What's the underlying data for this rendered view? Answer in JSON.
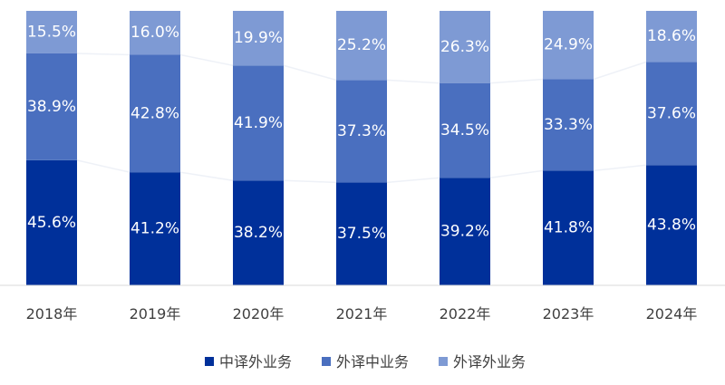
{
  "chart_data": {
    "type": "bar",
    "stacked": true,
    "percent": true,
    "categories": [
      "2018年",
      "2019年",
      "2020年",
      "2021年",
      "2022年",
      "2023年",
      "2024年"
    ],
    "series": [
      {
        "name": "中译外业务",
        "color": "#00309a",
        "values": [
          45.6,
          41.2,
          38.2,
          37.5,
          39.2,
          41.8,
          43.8
        ],
        "labels": [
          "45.6%",
          "41.2%",
          "38.2%",
          "37.5%",
          "39.2%",
          "41.8%",
          "43.8%"
        ]
      },
      {
        "name": "外译中业务",
        "color": "#4a6fbf",
        "values": [
          38.9,
          42.8,
          41.9,
          37.3,
          34.5,
          33.3,
          37.6
        ],
        "labels": [
          "38.9%",
          "42.8%",
          "41.9%",
          "37.3%",
          "34.5%",
          "33.3%",
          "37.6%"
        ]
      },
      {
        "name": "外译外业务",
        "color": "#7e9ad4",
        "values": [
          15.5,
          16.0,
          19.9,
          25.2,
          26.3,
          24.9,
          18.6
        ],
        "labels": [
          "15.5%",
          "16.0%",
          "19.9%",
          "25.2%",
          "26.3%",
          "24.9%",
          "18.6%"
        ]
      }
    ],
    "ylim": [
      0,
      100
    ],
    "grid": false,
    "legend_position": "bottom"
  }
}
